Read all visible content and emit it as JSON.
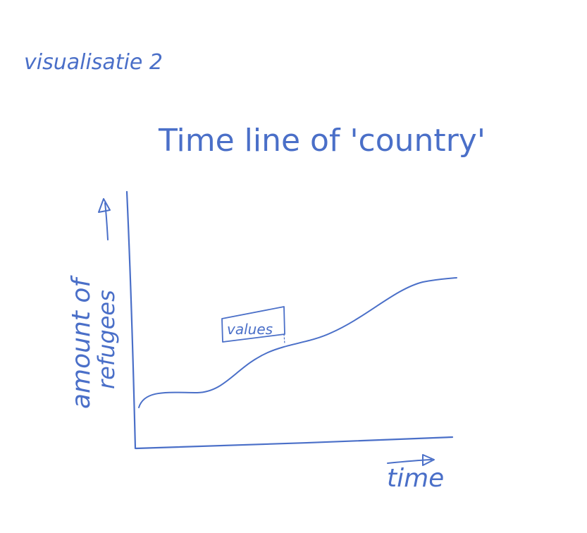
{
  "page": {
    "heading": "visualisatie 2"
  },
  "sketch": {
    "title": "Time line of 'country'",
    "y_axis_label_line1": "amount of",
    "y_axis_label_line2": "refugees",
    "x_axis_label": "time",
    "annotation_label": "values"
  },
  "colors": {
    "ink": "#4a6fc8",
    "paper": "#ffffff"
  }
}
